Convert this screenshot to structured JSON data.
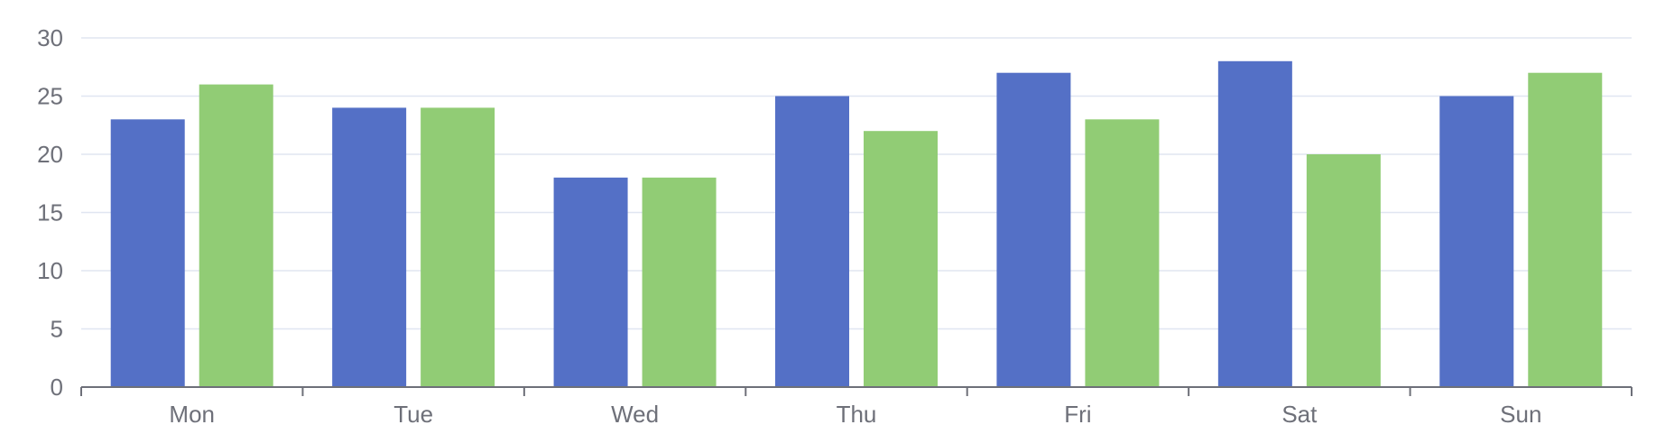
{
  "chart_data": {
    "type": "bar",
    "categories": [
      "Mon",
      "Tue",
      "Wed",
      "Thu",
      "Fri",
      "Sat",
      "Sun"
    ],
    "series": [
      {
        "values": [
          23,
          24,
          18,
          25,
          27,
          28,
          25
        ],
        "color": "#5470c6"
      },
      {
        "values": [
          26,
          24,
          18,
          22,
          23,
          20,
          27
        ],
        "color": "#91cc75"
      }
    ],
    "ylim": [
      0,
      30
    ],
    "yticks": [
      0,
      5,
      10,
      15,
      20,
      25,
      30
    ],
    "grid": true,
    "xlabel": "",
    "ylabel": "",
    "title": ""
  }
}
